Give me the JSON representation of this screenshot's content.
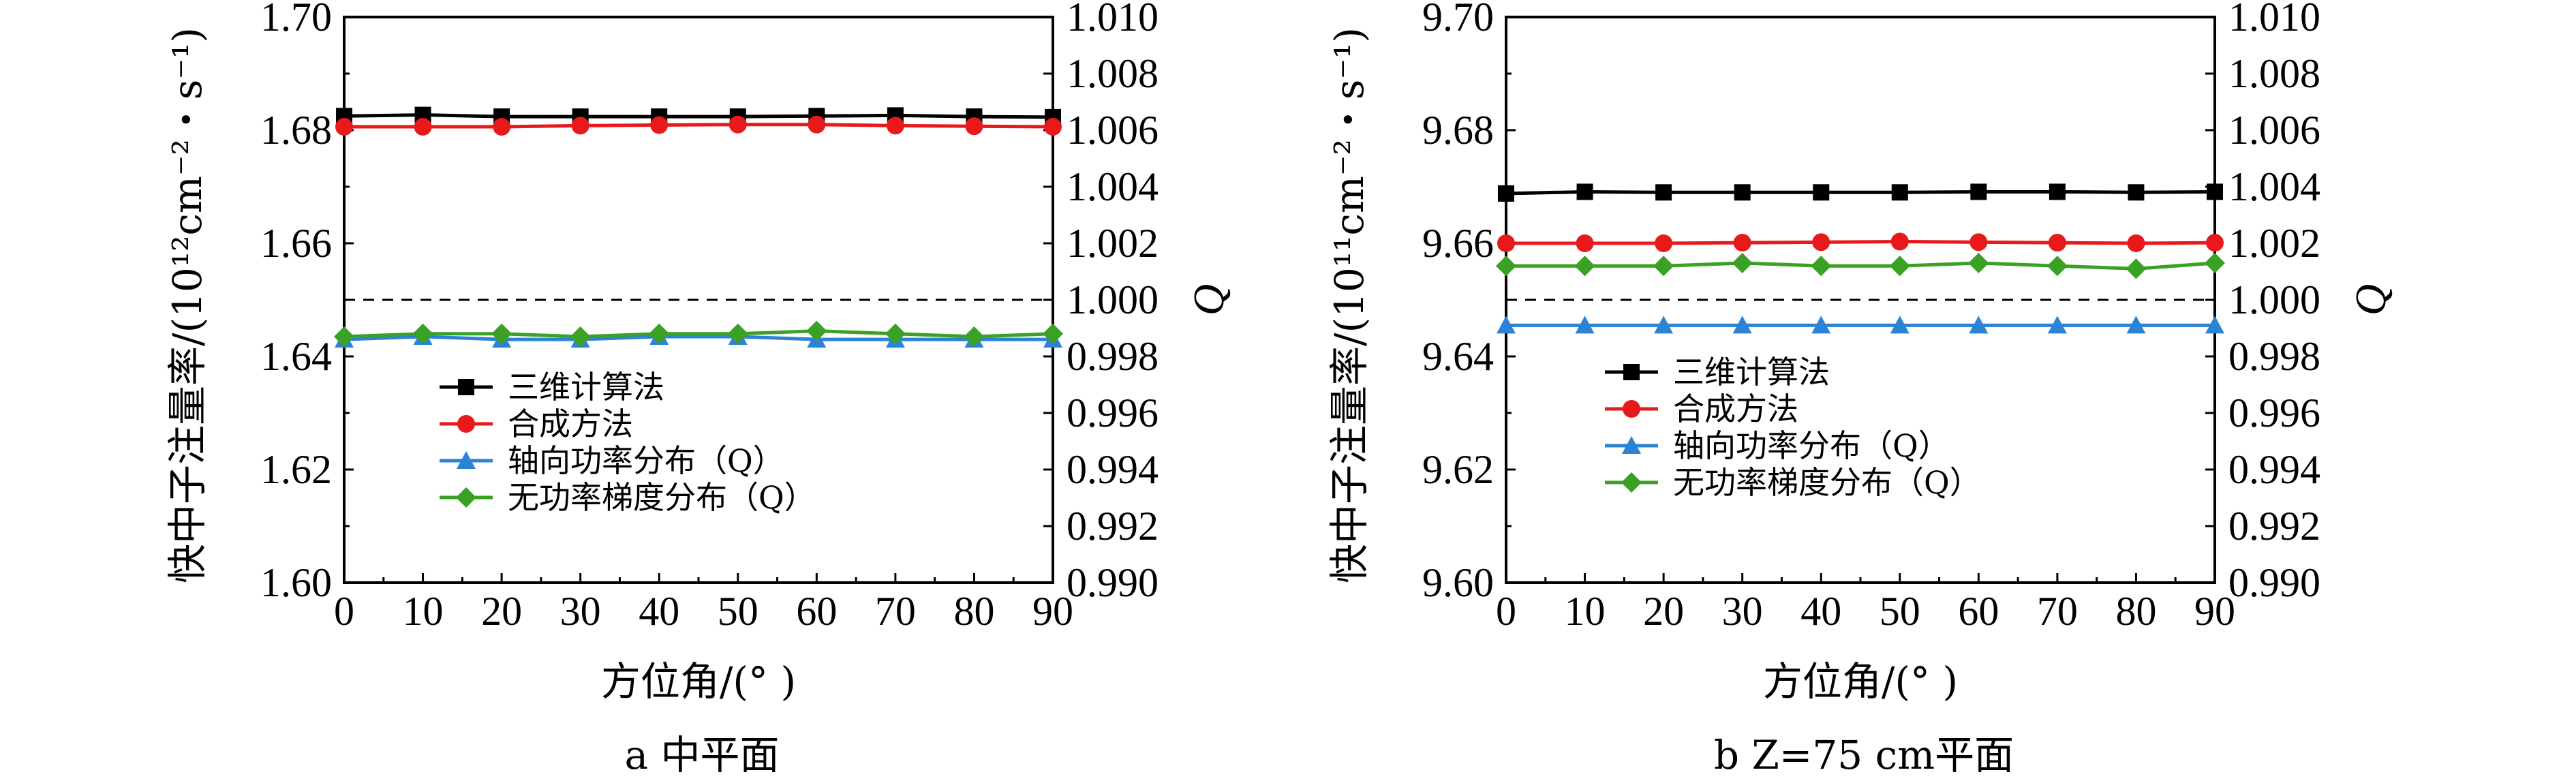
{
  "chart_data": [
    {
      "type": "line",
      "caption": "a  中平面",
      "xlabel": "方位角/(°  )",
      "ylabel_left": "快中子注量率/(10¹²cm⁻²・s⁻¹)",
      "ylabel_right": "Q",
      "x": [
        0,
        10,
        20,
        30,
        40,
        50,
        60,
        70,
        80,
        90
      ],
      "xlim": [
        0,
        90
      ],
      "xticks": [
        "0",
        "10",
        "20",
        "30",
        "40",
        "50",
        "60",
        "70",
        "80",
        "90"
      ],
      "ylim_left": [
        1.6,
        1.7
      ],
      "yticks_left": [
        "1.60",
        "1.62",
        "1.64",
        "1.66",
        "1.68",
        "1.70"
      ],
      "ylim_right": [
        0.99,
        1.01
      ],
      "yticks_right": [
        "0.990",
        "0.992",
        "0.994",
        "0.996",
        "0.998",
        "1.000",
        "1.002",
        "1.004",
        "1.006",
        "1.008",
        "1.010"
      ],
      "reference_line": 1.0,
      "legend_placement": "lower-left",
      "series": [
        {
          "name": "三维计算法",
          "axis": "left",
          "color": "#000000",
          "marker": "square",
          "values": [
            1.6825,
            1.6827,
            1.6824,
            1.6824,
            1.6824,
            1.6824,
            1.6825,
            1.6826,
            1.6824,
            1.6823
          ]
        },
        {
          "name": "合成方法",
          "axis": "left",
          "color": "#e8191b",
          "marker": "circle",
          "values": [
            1.6806,
            1.6806,
            1.6806,
            1.6808,
            1.6809,
            1.681,
            1.681,
            1.6808,
            1.6807,
            1.6806
          ]
        },
        {
          "name": "轴向功率分布（Q）",
          "axis": "right",
          "color": "#2c82d4",
          "marker": "triangle",
          "values": [
            0.9986,
            0.9987,
            0.9986,
            0.9986,
            0.9987,
            0.9987,
            0.9986,
            0.9986,
            0.9986,
            0.9986
          ]
        },
        {
          "name": "无功率梯度分布（Q）",
          "axis": "right",
          "color": "#3aa125",
          "marker": "diamond",
          "values": [
            0.9987,
            0.9988,
            0.9988,
            0.9987,
            0.9988,
            0.9988,
            0.9989,
            0.9988,
            0.9987,
            0.9988
          ]
        }
      ]
    },
    {
      "type": "line",
      "caption": "b  Z=75 cm平面",
      "xlabel": "方位角/(°  )",
      "ylabel_left": "快中子注量率/(10¹¹cm⁻²・s⁻¹)",
      "ylabel_right": "Q",
      "x": [
        0,
        10,
        20,
        30,
        40,
        50,
        60,
        70,
        80,
        90
      ],
      "xlim": [
        0,
        90
      ],
      "xticks": [
        "0",
        "10",
        "20",
        "30",
        "40",
        "50",
        "60",
        "70",
        "80",
        "90"
      ],
      "ylim_left": [
        9.6,
        9.7
      ],
      "yticks_left": [
        "9.60",
        "9.62",
        "9.64",
        "9.66",
        "9.68",
        "9.70"
      ],
      "ylim_right": [
        0.99,
        1.01
      ],
      "yticks_right": [
        "0.990",
        "0.992",
        "0.994",
        "0.996",
        "0.998",
        "1.000",
        "1.002",
        "1.004",
        "1.006",
        "1.008",
        "1.010"
      ],
      "reference_line": 1.0,
      "legend_placement": "lower-left",
      "series": [
        {
          "name": "三维计算法",
          "axis": "left",
          "color": "#000000",
          "marker": "square",
          "values": [
            9.6688,
            9.6691,
            9.669,
            9.669,
            9.669,
            9.669,
            9.6691,
            9.6691,
            9.669,
            9.6691
          ]
        },
        {
          "name": "合成方法",
          "axis": "left",
          "color": "#e8191b",
          "marker": "circle",
          "values": [
            9.66,
            9.66,
            9.66,
            9.6601,
            9.6602,
            9.6603,
            9.6602,
            9.6601,
            9.66,
            9.6601
          ]
        },
        {
          "name": "轴向功率分布（Q）",
          "axis": "right",
          "color": "#2c82d4",
          "marker": "triangle",
          "values": [
            0.9991,
            0.9991,
            0.9991,
            0.9991,
            0.9991,
            0.9991,
            0.9991,
            0.9991,
            0.9991,
            0.9991
          ]
        },
        {
          "name": "无功率梯度分布（Q）",
          "axis": "right",
          "color": "#3aa125",
          "marker": "diamond",
          "values": [
            1.0012,
            1.0012,
            1.0012,
            1.0013,
            1.0012,
            1.0012,
            1.0013,
            1.0012,
            1.0011,
            1.0013
          ]
        }
      ]
    }
  ]
}
